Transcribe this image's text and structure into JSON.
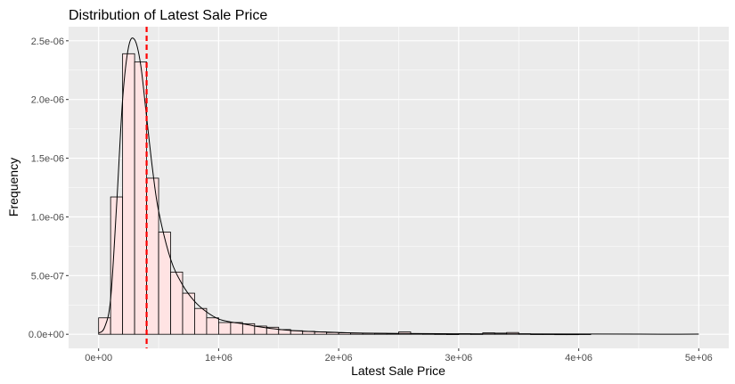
{
  "chart_data": {
    "type": "histogram",
    "title": "Distribution of Latest Sale Price",
    "xlabel": "Latest Sale Price",
    "ylabel": "Frequency",
    "xlim": [
      -250000,
      5250000
    ],
    "ylim": [
      -1.2e-07,
      2.62e-06
    ],
    "x_ticks": [
      0,
      1000000,
      2000000,
      3000000,
      4000000,
      5000000
    ],
    "x_tick_labels": [
      "0e+00",
      "1e+06",
      "2e+06",
      "3e+06",
      "4e+06",
      "5e+06"
    ],
    "y_ticks": [
      0,
      5e-07,
      1e-06,
      1.5e-06,
      2e-06,
      2.5e-06
    ],
    "y_tick_labels": [
      "0.0e+00",
      "5.0e-07",
      "1.0e-06",
      "1.5e-06",
      "2.0e-06",
      "2.5e-06"
    ],
    "grid": true,
    "bin_width": 100000,
    "bins_start": [
      0,
      100000,
      200000,
      300000,
      400000,
      500000,
      600000,
      700000,
      800000,
      900000,
      1000000,
      1100000,
      1200000,
      1300000,
      1400000,
      1500000,
      1600000,
      1700000,
      1800000,
      1900000,
      2000000,
      2100000,
      2200000,
      2300000,
      2400000,
      2500000,
      2600000,
      2700000,
      2800000,
      2900000,
      3000000,
      3100000,
      3200000,
      3300000,
      3400000,
      3500000,
      3600000,
      3700000,
      3800000,
      3900000,
      4000000
    ],
    "bin_values": [
      1.4e-07,
      1.17e-06,
      2.39e-06,
      2.32e-06,
      1.33e-06,
      8.7e-07,
      5.3e-07,
      3.5e-07,
      2.2e-07,
      1.4e-07,
      1e-07,
      1e-07,
      9e-08,
      7e-08,
      6e-08,
      4e-08,
      3e-08,
      2.5e-08,
      2e-08,
      1.5e-08,
      1.2e-08,
      1e-08,
      8e-09,
      7e-09,
      6e-09,
      2e-08,
      5e-09,
      4e-09,
      3e-09,
      2e-09,
      4e-09,
      3e-09,
      1.2e-08,
      1e-08,
      1.5e-08,
      4e-09,
      2e-09,
      2e-09,
      1e-09,
      1e-09,
      2e-09
    ],
    "density_curve": {
      "x": [
        0,
        50000,
        100000,
        150000,
        200000,
        250000,
        300000,
        350000,
        400000,
        450000,
        500000,
        600000,
        700000,
        800000,
        900000,
        1000000,
        1100000,
        1200000,
        1300000,
        1400000,
        1500000,
        1600000,
        1800000,
        2000000,
        2200000,
        2500000,
        3000000,
        3500000,
        4000000,
        4500000,
        5000000
      ],
      "y": [
        1e-08,
        6e-08,
        3e-07,
        1.1e-06,
        2e-06,
        2.45e-06,
        2.51e-06,
        2.3e-06,
        1.85e-06,
        1.4e-06,
        1.05e-06,
        6.4e-07,
        4.2e-07,
        2.8e-07,
        1.9e-07,
        1.3e-07,
        1.05e-07,
        9e-08,
        7e-08,
        5.5e-08,
        4.2e-08,
        3.3e-08,
        2.2e-08,
        1.5e-08,
        1e-08,
        7e-09,
        4e-09,
        3e-09,
        2e-09,
        1e-09,
        1e-09
      ]
    },
    "reference_line": {
      "x": 400000,
      "color": "#ff0000",
      "style": "dashed"
    },
    "colors": {
      "panel_background": "#ebebeb",
      "grid_major": "#ffffff",
      "bar_fill": "#ffe3e3",
      "bar_outline": "#000000",
      "density_line": "#000000",
      "tick_label": "#4d4d4d",
      "tick_mark": "#333333"
    }
  }
}
